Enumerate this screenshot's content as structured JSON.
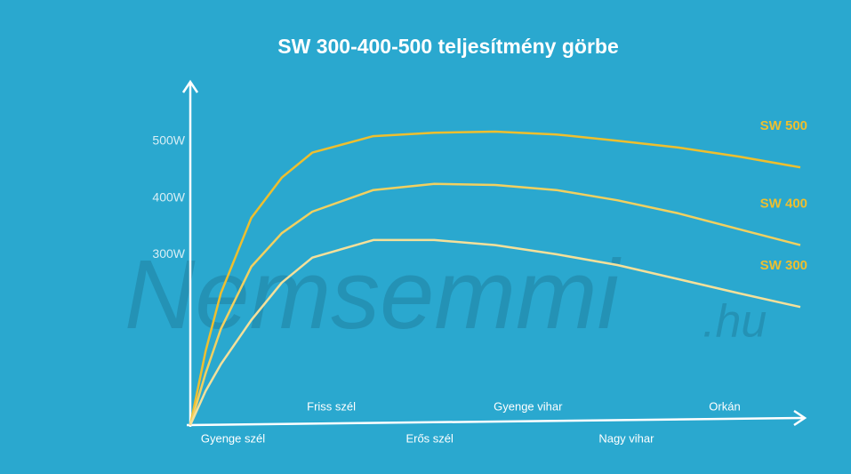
{
  "chart_data": {
    "type": "line",
    "title": "SW 300-400-500 teljesítmény görbe",
    "x": [
      0,
      0.25,
      0.5,
      1,
      1.5,
      2,
      3,
      4,
      5,
      6,
      7,
      8,
      9,
      10
    ],
    "xlim": [
      0,
      10
    ],
    "ylim": [
      0,
      600
    ],
    "yticks": [
      {
        "value": 300,
        "label": "300W"
      },
      {
        "value": 400,
        "label": "400W"
      },
      {
        "value": 500,
        "label": "500W"
      }
    ],
    "grid": false,
    "wind_labels": [
      "Gyenge szél",
      "Friss szél",
      "Erős szél",
      "Gyenge vihar",
      "Nagy vihar",
      "Orkán"
    ],
    "watermark": [
      "Nemsemmi",
      ".hu"
    ],
    "series": [
      {
        "name": "SW 500",
        "color": "#eebf2e",
        "values": [
          0,
          130,
          232,
          365,
          436,
          480,
          509,
          515,
          517,
          512,
          501,
          489,
          473,
          454
        ]
      },
      {
        "name": "SW 400",
        "color": "#f1d060",
        "values": [
          0,
          91,
          169,
          279,
          338,
          376,
          414,
          425,
          423,
          414,
          396,
          373,
          345,
          317
        ]
      },
      {
        "name": "SW 300",
        "color": "#f4e09a",
        "values": [
          0,
          60,
          107,
          185,
          251,
          295,
          326,
          326,
          317,
          301,
          282,
          257,
          232,
          208
        ]
      }
    ]
  }
}
